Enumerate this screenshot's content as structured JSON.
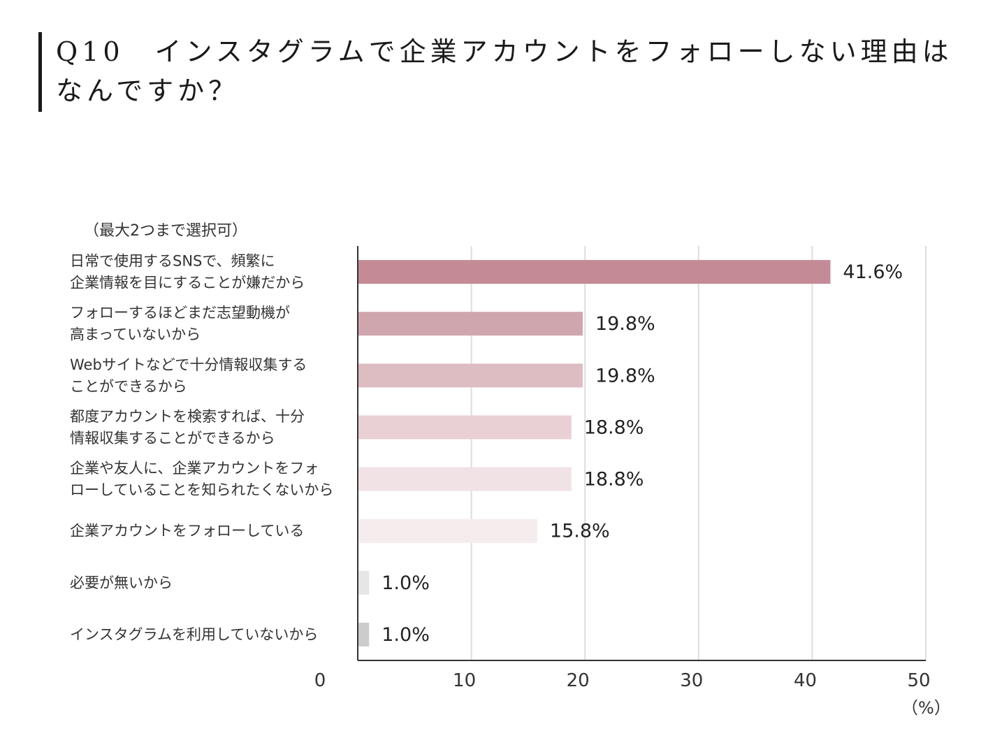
{
  "title": "Q10　インスタグラムで企業アカウントをフォローしない理由はなんですか？",
  "note": "（最大2つまで選択可）",
  "unit": "（%）",
  "chart_data": {
    "type": "bar",
    "orientation": "horizontal",
    "categories": [
      [
        "日常で使用するSNSで、頻繁に",
        "企業情報を目にすることが嫌だから"
      ],
      [
        "フォローするほどまだ志望動機が",
        "高まっていないから"
      ],
      [
        "Webサイトなどで十分情報収集する",
        "ことができるから"
      ],
      [
        "都度アカウントを検索すれば、十分",
        "情報収集することができるから"
      ],
      [
        "企業や友人に、企業アカウントをフォ",
        "ローしていることを知られたくないから"
      ],
      [
        "企業アカウントをフォローしている"
      ],
      [
        "必要が無いから"
      ],
      [
        "インスタグラムを利用していないから"
      ]
    ],
    "values": [
      41.6,
      19.8,
      19.8,
      18.8,
      18.8,
      15.8,
      1.0,
      1.0
    ],
    "value_labels": [
      "41.6%",
      "19.8%",
      "19.8%",
      "18.8%",
      "18.8%",
      "15.8%",
      "1.0%",
      "1.0%"
    ],
    "bar_colors": [
      "#c48b97",
      "#d0a6ae",
      "#ddbcc2",
      "#e8d0d4",
      "#f0e2e5",
      "#f5ecee",
      "#e6e6e6",
      "#cccccc"
    ],
    "xlim": [
      0,
      50
    ],
    "xticks": [
      0,
      10,
      20,
      30,
      40,
      50
    ],
    "grid": true
  }
}
